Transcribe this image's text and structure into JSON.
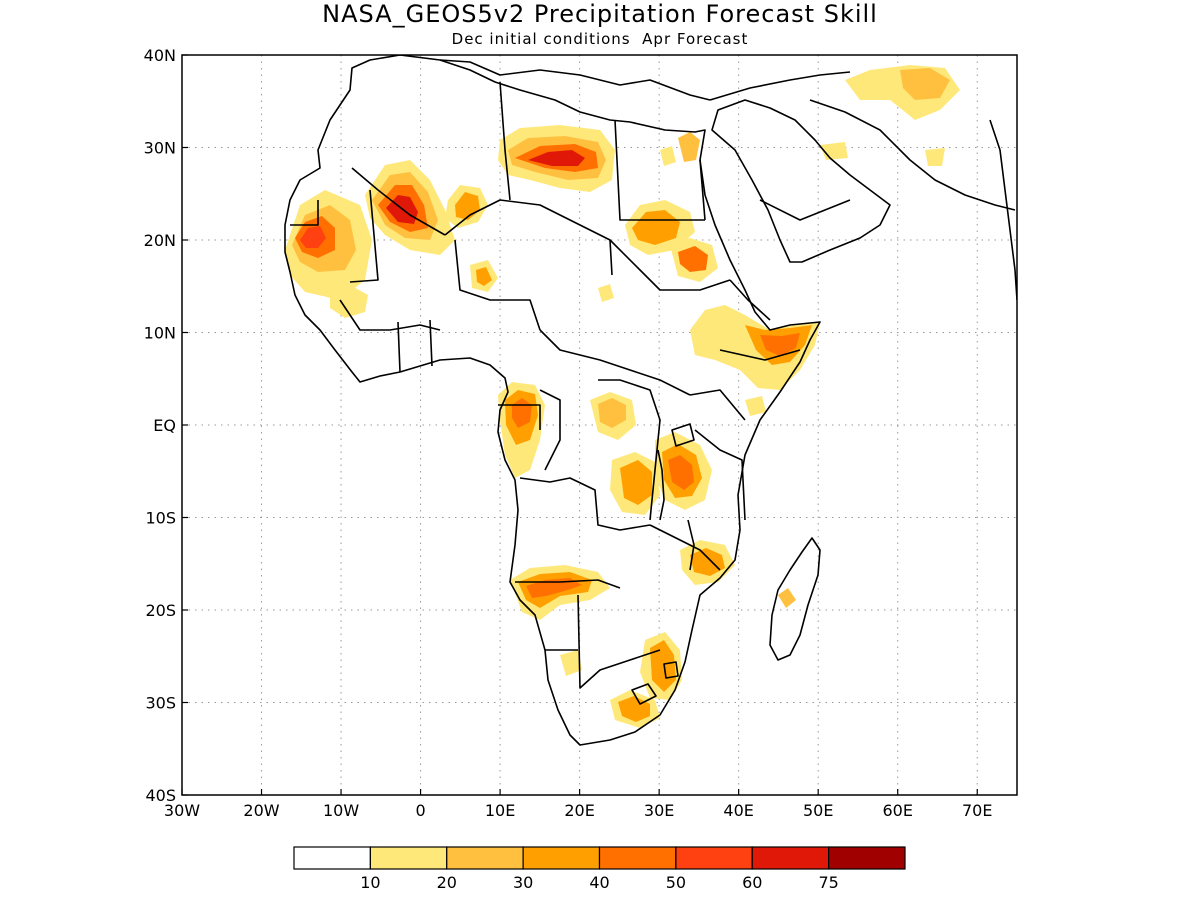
{
  "title": "NASA_GEOS5v2 Precipitation Forecast Skill",
  "subtitle": "Dec initial conditions  Apr Forecast",
  "map": {
    "lon_range": [
      -30,
      75
    ],
    "lat_range": [
      -40,
      40
    ],
    "lat_ticks": [
      40,
      30,
      20,
      10,
      0,
      -10,
      -20,
      -30,
      -40
    ],
    "lat_labels": [
      "40N",
      "30N",
      "20N",
      "10N",
      "EQ",
      "10S",
      "20S",
      "30S",
      "40S"
    ],
    "lon_ticks": [
      -30,
      -20,
      -10,
      0,
      10,
      20,
      30,
      40,
      50,
      60,
      70
    ],
    "lon_labels": [
      "30W",
      "20W",
      "10W",
      "0",
      "10E",
      "20E",
      "30E",
      "40E",
      "50E",
      "60E",
      "70E"
    ],
    "gridlines": "dotted"
  },
  "colorbar": {
    "colors": [
      "#ffffff",
      "#ffe87a",
      "#ffc040",
      "#ffa000",
      "#ff7000",
      "#ff4010",
      "#e01808",
      "#a00000"
    ],
    "labels": [
      "10",
      "20",
      "30",
      "40",
      "50",
      "60",
      "75"
    ]
  }
}
